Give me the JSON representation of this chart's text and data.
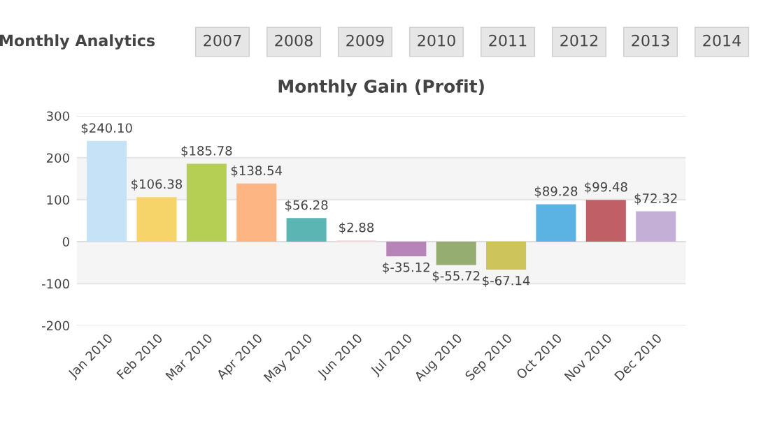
{
  "chart_data": {
    "type": "bar",
    "title": "Monthly Gain (Profit)",
    "annotations": [
      "Monthly Analytics",
      "2007",
      "2008",
      "2009",
      "2010",
      "2011",
      "2012",
      "2013",
      "2014"
    ],
    "categories": [
      "Jan 2010",
      "Feb 2010",
      "Mar 2010",
      "Apr 2010",
      "May 2010",
      "Jun 2010",
      "Jul 2010",
      "Aug 2010",
      "Sep 2010",
      "Oct 2010",
      "Nov 2010",
      "Dec 2010"
    ],
    "values": [
      240.1,
      106.38,
      185.78,
      138.54,
      56.28,
      2.88,
      -35.12,
      -55.72,
      -67.14,
      89.28,
      99.48,
      72.32
    ],
    "value_labels": [
      "$240.10",
      "$106.38",
      "$185.78",
      "$138.54",
      "$56.28",
      "$2.88",
      "$-35.12",
      "$-55.72",
      "$-67.14",
      "$89.28",
      "$99.48",
      "$72.32"
    ],
    "colors": [
      "#c6e2f7",
      "#f7d46a",
      "#b5cf55",
      "#fdb583",
      "#5ab5b3",
      "#f5dcdc",
      "#b784b8",
      "#96ad71",
      "#cdc55b",
      "#5ab3e3",
      "#c06066",
      "#c4b0d6"
    ],
    "ylim": [
      -200,
      300
    ],
    "yticks": [
      -200,
      -100,
      0,
      100,
      200,
      300
    ],
    "grid": "y",
    "bands": [
      {
        "axis": "y",
        "from": 100,
        "to": 200,
        "color": "#f5f5f5"
      },
      {
        "axis": "y",
        "from": -100,
        "to": 0,
        "color": "#f5f5f5"
      }
    ]
  }
}
